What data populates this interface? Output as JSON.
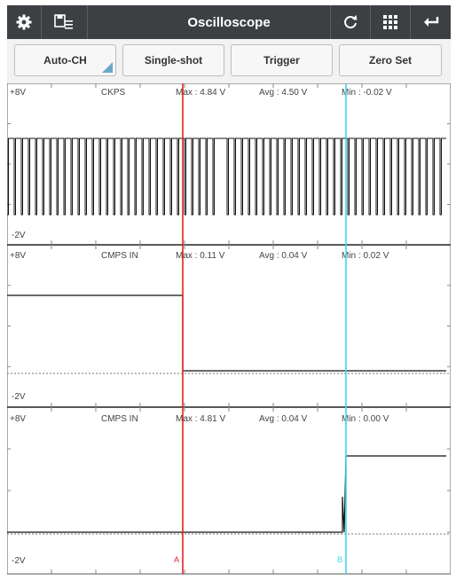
{
  "header": {
    "title": "Oscilloscope",
    "icons": [
      "gear-icon",
      "save-list-icon",
      "refresh-icon",
      "grid-icon",
      "back-icon"
    ]
  },
  "toolbar": {
    "buttons": [
      {
        "label": "Auto-CH"
      },
      {
        "label": "Single-shot"
      },
      {
        "label": "Trigger"
      },
      {
        "label": "Zero Set"
      }
    ]
  },
  "channels": [
    {
      "name": "CKPS",
      "top": "+8V",
      "bottom": "-2V",
      "max": "Max : 4.84 V",
      "avg": "Avg : 4.50 V",
      "min": "Min : -0.02 V"
    },
    {
      "name": "CMPS IN",
      "top": "+8V",
      "bottom": "-2V",
      "max": "Max : 0.11 V",
      "avg": "Avg : 0.04 V",
      "min": "Min : 0.02 V"
    },
    {
      "name": "CMPS IN",
      "top": "+8V",
      "bottom": "-2V",
      "max": "Max : 4.81 V",
      "avg": "Avg : 0.04 V",
      "min": "Min : 0.00 V"
    }
  ],
  "cursors": {
    "a": {
      "label": "A",
      "color": "#e52222"
    },
    "b": {
      "label": "B",
      "color": "#41d6ea"
    }
  }
}
